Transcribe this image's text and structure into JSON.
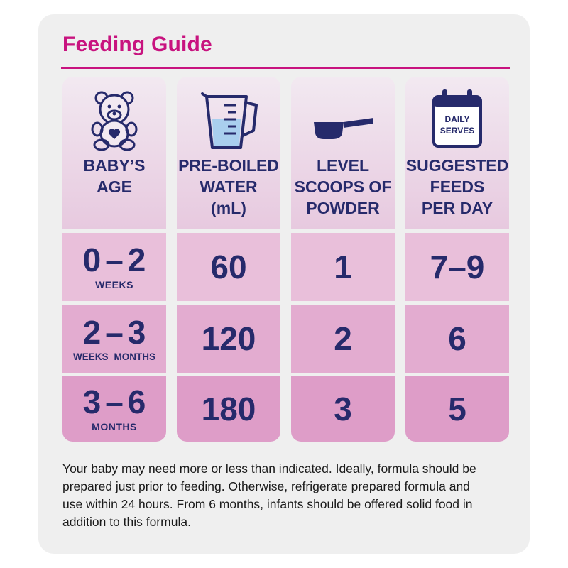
{
  "title": "Feeding Guide",
  "columns": [
    {
      "label": "BABY’S\nAGE",
      "icon": "teddy-bear-icon"
    },
    {
      "label": "PRE-BOILED\nWATER\n(mL)",
      "icon": "measuring-jug-icon"
    },
    {
      "label": "LEVEL\nSCOOPS OF\nPOWDER",
      "icon": "scoop-icon"
    },
    {
      "label": "SUGGESTED\nFEEDS\nPER DAY",
      "icon": "calendar-icon",
      "icon_text_1": "DAILY",
      "icon_text_2": "SERVES"
    }
  ],
  "rows": [
    {
      "age_from": "0",
      "age_to": "2",
      "age_unit": "WEEKS",
      "water": "60",
      "scoops": "1",
      "feeds": "7–9"
    },
    {
      "age_from": "2",
      "age_to": "3",
      "age_unit_from": "WEEKS",
      "age_unit_to": "MONTHS",
      "water": "120",
      "scoops": "2",
      "feeds": "6"
    },
    {
      "age_from": "3",
      "age_to": "6",
      "age_unit": "MONTHS",
      "water": "180",
      "scoops": "3",
      "feeds": "5"
    }
  ],
  "dash": "–",
  "footnote": "Your baby may need more or less than indicated. Ideally, formula should be prepared just prior to feeding. Otherwise, refrigerate prepared formula and use within 24 hours. From 6 months, infants should be offered solid food in addition to this formula.",
  "colors": {
    "accent": "#c8137f",
    "text_dark": "#262a6b",
    "card_bg": "#efefef"
  }
}
